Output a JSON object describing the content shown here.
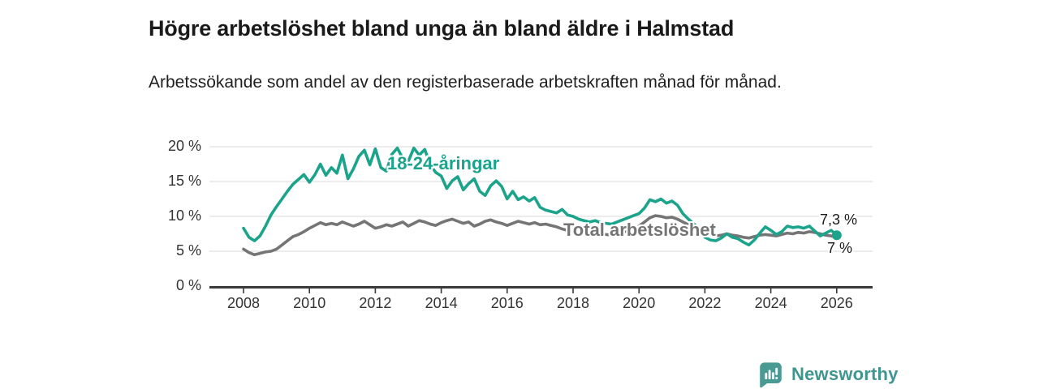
{
  "chart_data": {
    "type": "line",
    "title": "Högre arbetslöshet bland unga än bland äldre i Halmstad",
    "subtitle": "Arbetssökande som andel av den registerbaserade arbetskraften månad för månad.",
    "xlabel": "",
    "ylabel": "",
    "grid": "horizontal",
    "legend_position": "inline-labels-on-lines",
    "x_unit": "year",
    "x_start": 2008,
    "x_step": 0.16667,
    "xlim": [
      2007,
      2027.1
    ],
    "ylim": [
      0,
      20
    ],
    "x_ticks": [
      2008,
      2010,
      2012,
      2014,
      2016,
      2018,
      2020,
      2022,
      2024,
      2026
    ],
    "x_tick_labels": [
      "2008",
      "2010",
      "2012",
      "2014",
      "2016",
      "2018",
      "2020",
      "2022",
      "2024",
      "2026"
    ],
    "y_ticks": [
      0,
      5,
      10,
      15,
      20
    ],
    "y_tick_labels": [
      "0 %",
      "5 %",
      "10 %",
      "15 %",
      "20 %"
    ],
    "series": [
      {
        "name": "18-24-åringar",
        "color": "#1ba38c",
        "end_label": "7,3 %",
        "end_value": 7.3,
        "end_dot": true,
        "values": [
          8.3,
          7.0,
          6.5,
          7.2,
          8.6,
          10.2,
          11.4,
          12.5,
          13.6,
          14.6,
          15.3,
          16.0,
          14.9,
          16.0,
          17.5,
          15.9,
          17.0,
          16.2,
          18.8,
          15.4,
          16.8,
          18.6,
          19.5,
          17.4,
          19.7,
          17.0,
          16.5,
          18.9,
          19.8,
          18.3,
          17.9,
          19.8,
          18.8,
          19.6,
          17.4,
          16.3,
          15.8,
          14.0,
          15.1,
          15.7,
          13.8,
          14.7,
          15.4,
          13.6,
          13.0,
          14.4,
          15.1,
          14.3,
          12.5,
          13.6,
          12.4,
          12.8,
          12.2,
          12.7,
          11.3,
          10.9,
          10.7,
          10.5,
          11.0,
          10.2,
          10.0,
          9.6,
          9.4,
          9.2,
          9.4,
          9.1,
          9.0,
          8.9,
          9.2,
          9.5,
          9.8,
          10.1,
          10.4,
          11.2,
          12.4,
          12.1,
          12.5,
          11.9,
          12.2,
          11.6,
          10.4,
          9.6,
          8.9,
          8.2,
          7.0,
          6.6,
          6.5,
          6.9,
          7.5,
          7.0,
          6.8,
          6.3,
          5.9,
          6.6,
          7.6,
          8.5,
          8.0,
          7.4,
          7.8,
          8.6,
          8.4,
          8.5,
          8.3,
          8.6,
          7.9,
          7.2,
          7.6,
          8.0,
          7.3
        ]
      },
      {
        "name": "Total arbetslöshet",
        "color": "#757575",
        "end_label": "7 %",
        "end_value": 7.0,
        "end_dot": false,
        "values": [
          5.3,
          4.8,
          4.5,
          4.7,
          4.9,
          5.0,
          5.3,
          5.9,
          6.5,
          7.1,
          7.4,
          7.8,
          8.3,
          8.7,
          9.1,
          8.8,
          9.0,
          8.8,
          9.2,
          8.9,
          8.6,
          8.9,
          9.3,
          8.8,
          8.3,
          8.5,
          8.8,
          8.6,
          8.9,
          9.2,
          8.6,
          9.0,
          9.4,
          9.2,
          8.9,
          8.7,
          9.1,
          9.4,
          9.6,
          9.3,
          9.0,
          9.2,
          8.6,
          8.9,
          9.3,
          9.5,
          9.2,
          9.0,
          8.7,
          9.0,
          9.3,
          9.1,
          8.9,
          9.1,
          8.8,
          8.9,
          8.7,
          8.5,
          8.2,
          8.0,
          7.8,
          7.6,
          7.7,
          7.5,
          7.6,
          7.5,
          7.4,
          7.3,
          7.5,
          7.7,
          8.0,
          8.3,
          8.6,
          9.2,
          9.8,
          10.1,
          10.0,
          9.8,
          9.9,
          9.6,
          9.2,
          8.8,
          8.4,
          8.0,
          7.7,
          7.4,
          7.2,
          7.3,
          7.5,
          7.3,
          7.2,
          7.0,
          6.9,
          7.1,
          7.3,
          7.4,
          7.3,
          7.2,
          7.4,
          7.6,
          7.5,
          7.7,
          7.6,
          7.8,
          7.7,
          7.5,
          7.3,
          7.2,
          7.0
        ]
      }
    ]
  },
  "footer": {
    "brand": "Newsworthy",
    "logo_icon": "bar-chart-speech-bubble-icon",
    "brand_color": "#3f958f",
    "icon_color": "#4a9a94"
  },
  "colors": {
    "accent_teal": "#1ba38c",
    "series_gray": "#757575",
    "gridline": "#d9d9d9",
    "axis": "#3a3a3a",
    "text_dark": "#1a1a1a"
  }
}
